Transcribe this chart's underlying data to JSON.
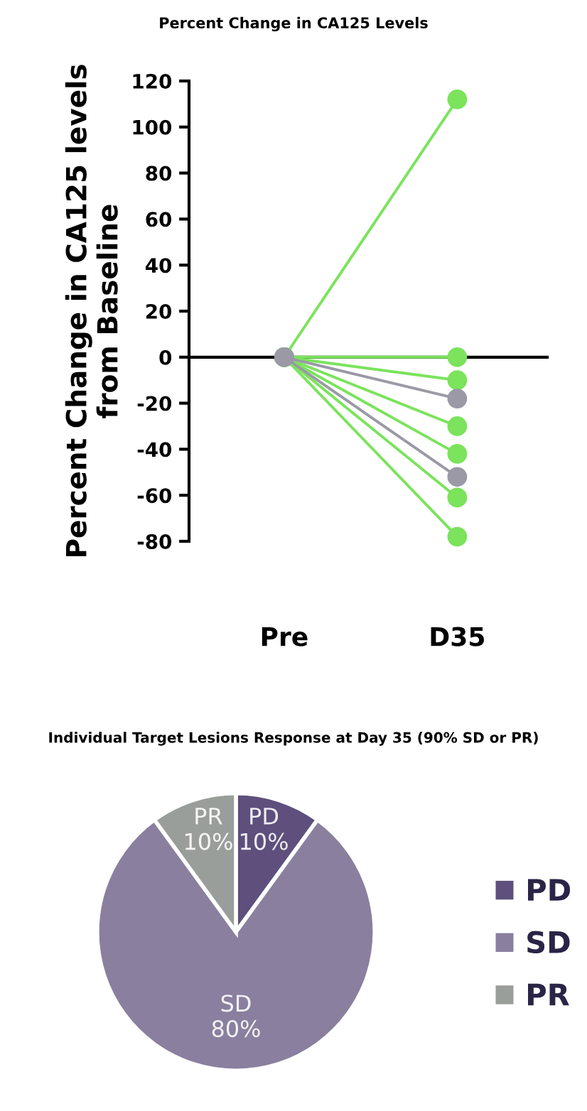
{
  "chart_data": [
    {
      "type": "line",
      "title": "Percent Change in CA125 Levels",
      "ylabel": "Percent Change in CA125 levels\nfrom Baseline",
      "categories": [
        "Pre",
        "D35"
      ],
      "ylim": [
        -80,
        120
      ],
      "yticks": [
        -80,
        -60,
        -40,
        -20,
        0,
        20,
        40,
        60,
        80,
        100,
        120
      ],
      "marker": "circle",
      "line_style": "solid",
      "legend": false,
      "series": [
        {
          "color": "#7be35c",
          "values": [
            0,
            112
          ]
        },
        {
          "color": "#7be35c",
          "values": [
            0,
            0
          ]
        },
        {
          "color": "#7be35c",
          "values": [
            0,
            -10
          ]
        },
        {
          "color": "#7be35c",
          "values": [
            0,
            -30
          ]
        },
        {
          "color": "#7be35c",
          "values": [
            0,
            -42
          ]
        },
        {
          "color": "#7be35c",
          "values": [
            0,
            -61
          ]
        },
        {
          "color": "#7be35c",
          "values": [
            0,
            -78
          ]
        },
        {
          "color": "#9b99a6",
          "values": [
            0,
            -18
          ]
        },
        {
          "color": "#9b99a6",
          "values": [
            0,
            -52
          ]
        }
      ]
    },
    {
      "type": "pie",
      "title": "Individual Target Lesions Response at Day 35 (90% SD or PR)",
      "categories": [
        "PD",
        "SD",
        "PR"
      ],
      "values": [
        10,
        80,
        10
      ],
      "colors": [
        "#5e4f7c",
        "#8a7f9e",
        "#9a9e9a"
      ],
      "value_labels": [
        "10%",
        "80%",
        "10%"
      ],
      "legend": "right"
    }
  ]
}
